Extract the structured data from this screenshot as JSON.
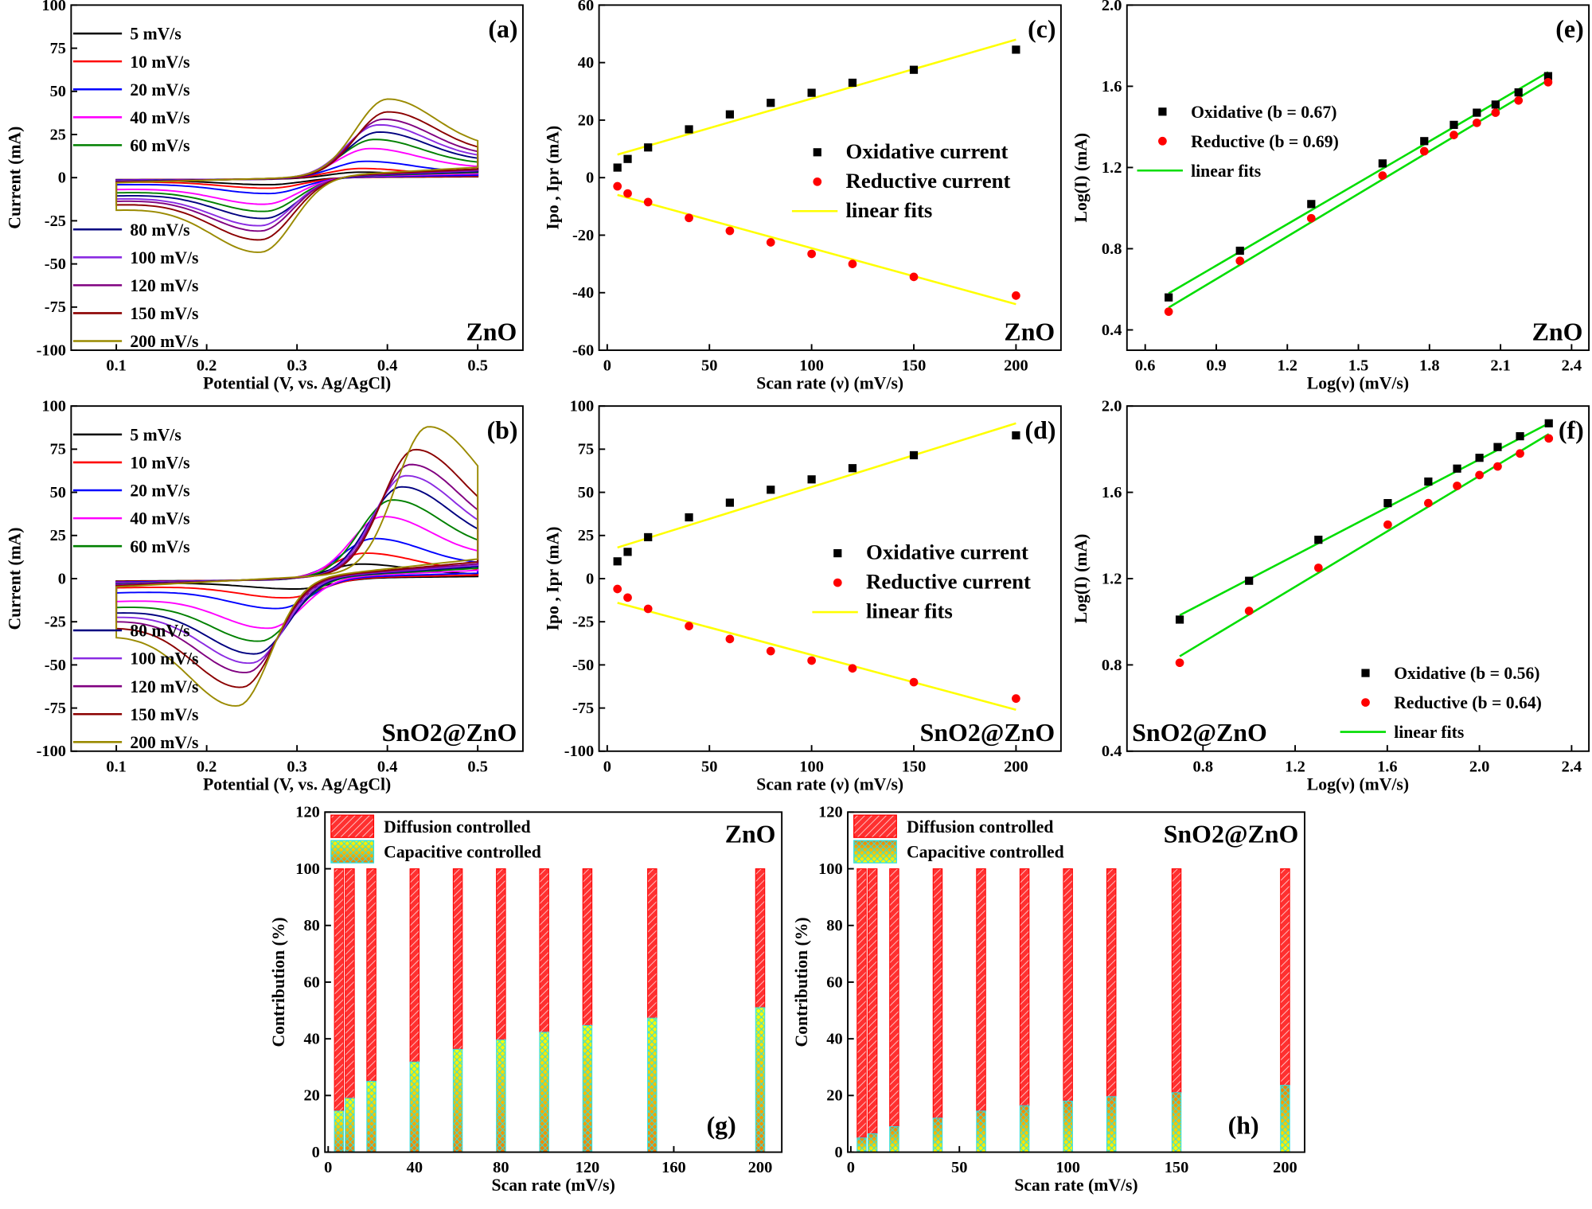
{
  "chart_data": [
    {
      "id": "a",
      "type": "line",
      "panel_label": "(a)",
      "sample": "ZnO",
      "xlabel": "Potential (V, vs. Ag/AgCl)",
      "ylabel": "Current (mA)",
      "xlim": [
        0.05,
        0.55
      ],
      "ylim": [
        -100,
        100
      ],
      "xticks": [
        "0.1",
        "0.2",
        "0.3",
        "0.4",
        "0.5"
      ],
      "xtick_values": [
        0.1,
        0.2,
        0.3,
        0.4,
        0.5
      ],
      "yticks": [
        "-100",
        "-75",
        "-50",
        "-25",
        "0",
        "25",
        "50",
        "75",
        "100"
      ],
      "ytick_values": [
        -100,
        -75,
        -50,
        -25,
        0,
        25,
        50,
        75,
        100
      ],
      "series": [
        {
          "name": "5 mV/s",
          "color": "#000000",
          "anodic_peak": [
            0.37,
            4
          ],
          "cathodic_peak": [
            0.27,
            -4
          ]
        },
        {
          "name": "10 mV/s",
          "color": "#ff0000",
          "anodic_peak": [
            0.37,
            6
          ],
          "cathodic_peak": [
            0.27,
            -6
          ]
        },
        {
          "name": "20 mV/s",
          "color": "#0000ff",
          "anodic_peak": [
            0.375,
            10
          ],
          "cathodic_peak": [
            0.27,
            -9
          ]
        },
        {
          "name": "40 mV/s",
          "color": "#ff00ff",
          "anodic_peak": [
            0.38,
            17
          ],
          "cathodic_peak": [
            0.265,
            -15
          ]
        },
        {
          "name": "60 mV/s",
          "color": "#008000",
          "anodic_peak": [
            0.385,
            22
          ],
          "cathodic_peak": [
            0.265,
            -19
          ]
        },
        {
          "name": "80  mV/s",
          "color": "#000080",
          "anodic_peak": [
            0.39,
            26
          ],
          "cathodic_peak": [
            0.265,
            -23
          ]
        },
        {
          "name": "100 mV/s",
          "color": "#8a2be2",
          "anodic_peak": [
            0.39,
            30
          ],
          "cathodic_peak": [
            0.26,
            -27
          ]
        },
        {
          "name": "120 mV/s",
          "color": "#800080",
          "anodic_peak": [
            0.395,
            33
          ],
          "cathodic_peak": [
            0.26,
            -30
          ]
        },
        {
          "name": "150 mV/s",
          "color": "#8b0000",
          "anodic_peak": [
            0.4,
            37
          ],
          "cathodic_peak": [
            0.26,
            -35
          ]
        },
        {
          "name": "200 mV/s",
          "color": "#9a8a00",
          "anodic_peak": [
            0.4,
            44
          ],
          "cathodic_peak": [
            0.26,
            -42
          ]
        }
      ]
    },
    {
      "id": "b",
      "type": "line",
      "panel_label": "(b)",
      "sample": "SnO2@ZnO",
      "xlabel": "Potential (V, vs. Ag/AgCl)",
      "ylabel": "Current (mA)",
      "xlim": [
        0.05,
        0.55
      ],
      "ylim": [
        -100,
        100
      ],
      "xticks": [
        "0.1",
        "0.2",
        "0.3",
        "0.4",
        "0.5"
      ],
      "xtick_values": [
        0.1,
        0.2,
        0.3,
        0.4,
        0.5
      ],
      "yticks": [
        "-100",
        "-75",
        "-50",
        "-25",
        "0",
        "25",
        "50",
        "75",
        "100"
      ],
      "ytick_values": [
        -100,
        -75,
        -50,
        -25,
        0,
        25,
        50,
        75,
        100
      ],
      "series": [
        {
          "name": "5 mV/s",
          "color": "#000000",
          "anodic_peak": [
            0.37,
            9
          ],
          "cathodic_peak": [
            0.3,
            -6
          ]
        },
        {
          "name": "10 mV/s",
          "color": "#ff0000",
          "anodic_peak": [
            0.375,
            15
          ],
          "cathodic_peak": [
            0.29,
            -11
          ]
        },
        {
          "name": "20 mV/s",
          "color": "#0000ff",
          "anodic_peak": [
            0.385,
            23
          ],
          "cathodic_peak": [
            0.28,
            -17
          ]
        },
        {
          "name": "40 mV/s",
          "color": "#ff00ff",
          "anodic_peak": [
            0.395,
            35
          ],
          "cathodic_peak": [
            0.27,
            -28
          ]
        },
        {
          "name": "60 mV/s",
          "color": "#008000",
          "anodic_peak": [
            0.405,
            44
          ],
          "cathodic_peak": [
            0.26,
            -35
          ]
        },
        {
          "name": "80  mV/s",
          "color": "#000080",
          "anodic_peak": [
            0.415,
            51
          ],
          "cathodic_peak": [
            0.255,
            -42
          ]
        },
        {
          "name": "100 mV/s",
          "color": "#8a2be2",
          "anodic_peak": [
            0.42,
            57
          ],
          "cathodic_peak": [
            0.25,
            -47
          ]
        },
        {
          "name": "120 mV/s",
          "color": "#800080",
          "anodic_peak": [
            0.425,
            63
          ],
          "cathodic_peak": [
            0.245,
            -52
          ]
        },
        {
          "name": "150 mV/s",
          "color": "#8b0000",
          "anodic_peak": [
            0.43,
            71
          ],
          "cathodic_peak": [
            0.24,
            -60
          ]
        },
        {
          "name": "200 mV/s",
          "color": "#9a8a00",
          "anodic_peak": [
            0.445,
            83
          ],
          "cathodic_peak": [
            0.235,
            -70
          ]
        }
      ]
    },
    {
      "id": "c",
      "type": "scatter",
      "panel_label": "(c)",
      "sample": "ZnO",
      "xlabel": "Scan rate (ν) (mV/s)",
      "ylabel": "Ipo , Ipr (mA)",
      "xlim": [
        -4,
        222
      ],
      "ylim": [
        -60,
        60
      ],
      "xticks": [
        "0",
        "50",
        "100",
        "150",
        "200"
      ],
      "xtick_values": [
        0,
        50,
        100,
        150,
        200
      ],
      "yticks": [
        "-60",
        "-40",
        "-20",
        "0",
        "20",
        "40",
        "60"
      ],
      "ytick_values": [
        -60,
        -40,
        -20,
        0,
        20,
        40,
        60
      ],
      "x": [
        5,
        10,
        20,
        40,
        60,
        80,
        100,
        120,
        150,
        200
      ],
      "series": [
        {
          "name": "Oxidative current",
          "color": "#000000",
          "marker": "square",
          "values": [
            3.5,
            6.5,
            10.5,
            16.8,
            22,
            26,
            29.5,
            33,
            37.5,
            44.5
          ]
        },
        {
          "name": "Reductive current",
          "color": "#ff0000",
          "marker": "circle",
          "values": [
            -3,
            -5.5,
            -8.5,
            -14,
            -18.5,
            -22.5,
            -26.5,
            -30,
            -34.5,
            -41
          ]
        }
      ],
      "fits": {
        "name": "linear fits",
        "color": "#ffff00",
        "lines": [
          [
            [
              5,
              8
            ],
            [
              200,
              48
            ]
          ],
          [
            [
              5,
              -6
            ],
            [
              200,
              -44
            ]
          ]
        ]
      }
    },
    {
      "id": "d",
      "type": "scatter",
      "panel_label": "(d)",
      "sample": "SnO2@ZnO",
      "xlabel": "Scan rate (ν) (mV/s)",
      "ylabel": "Ipo , Ipr (mA)",
      "xlim": [
        -4,
        222
      ],
      "ylim": [
        -100,
        100
      ],
      "xticks": [
        "0",
        "50",
        "100",
        "150",
        "200"
      ],
      "xtick_values": [
        0,
        50,
        100,
        150,
        200
      ],
      "yticks": [
        "-100",
        "-75",
        "-50",
        "-25",
        "0",
        "25",
        "50",
        "75",
        "100"
      ],
      "ytick_values": [
        -100,
        -75,
        -50,
        -25,
        0,
        25,
        50,
        75,
        100
      ],
      "x": [
        5,
        10,
        20,
        40,
        60,
        80,
        100,
        120,
        150,
        200
      ],
      "series": [
        {
          "name": "Oxidative current",
          "color": "#000000",
          "marker": "square",
          "values": [
            10,
            15.5,
            24,
            35.5,
            44,
            51.5,
            57.5,
            64,
            71.5,
            83
          ]
        },
        {
          "name": "Reductive current",
          "color": "#ff0000",
          "marker": "circle",
          "values": [
            -6,
            -11,
            -17.5,
            -27.5,
            -35,
            -42,
            -47.5,
            -52,
            -60,
            -69.5
          ]
        }
      ],
      "fits": {
        "name": "linear fits",
        "color": "#ffff00",
        "lines": [
          [
            [
              5,
              18
            ],
            [
              200,
              90
            ]
          ],
          [
            [
              5,
              -14
            ],
            [
              200,
              -76
            ]
          ]
        ]
      }
    },
    {
      "id": "e",
      "type": "scatter",
      "panel_label": "(e)",
      "sample": "ZnO",
      "xlabel": "Log(ν) (mV/s)",
      "ylabel": "Log(I) (mA)",
      "xlim": [
        0.523,
        2.473
      ],
      "ylim": [
        0.3,
        2.0
      ],
      "xticks": [
        "0.6",
        "0.9",
        "1.2",
        "1.5",
        "1.8",
        "2.1",
        "2.4"
      ],
      "xtick_values": [
        0.6,
        0.9,
        1.2,
        1.5,
        1.8,
        2.1,
        2.4
      ],
      "yticks": [
        "0.4",
        "0.8",
        "1.2",
        "1.6",
        "2.0"
      ],
      "ytick_values": [
        0.4,
        0.8,
        1.2,
        1.6,
        2.0
      ],
      "x": [
        0.699,
        1.0,
        1.301,
        1.602,
        1.778,
        1.903,
        2.0,
        2.079,
        2.176,
        2.301
      ],
      "series": [
        {
          "name": "Oxidative (b = 0.67)",
          "color": "#000000",
          "marker": "square",
          "values": [
            0.56,
            0.79,
            1.02,
            1.22,
            1.33,
            1.41,
            1.47,
            1.51,
            1.57,
            1.65
          ]
        },
        {
          "name": "Reductive (b = 0.69)",
          "color": "#ff0000",
          "marker": "circle",
          "values": [
            0.49,
            0.74,
            0.95,
            1.16,
            1.28,
            1.36,
            1.42,
            1.47,
            1.53,
            1.62
          ]
        }
      ],
      "fits": {
        "name": "linear fits",
        "color": "#00dd00",
        "lines": [
          [
            [
              0.699,
              0.58
            ],
            [
              2.301,
              1.67
            ]
          ],
          [
            [
              0.699,
              0.51
            ],
            [
              2.301,
              1.63
            ]
          ]
        ]
      }
    },
    {
      "id": "f",
      "type": "scatter",
      "panel_label": "(f)",
      "sample": "SnO2@ZnO",
      "xlabel": "Log(ν) (mV/s)",
      "ylabel": "Log(I) (mA)",
      "xlim": [
        0.47,
        2.475
      ],
      "ylim": [
        0.4,
        2.0
      ],
      "xticks": [
        "0.8",
        "1.2",
        "1.6",
        "2.0",
        "2.4"
      ],
      "xtick_values": [
        0.8,
        1.2,
        1.6,
        2.0,
        2.4
      ],
      "yticks": [
        "0.4",
        "0.8",
        "1.2",
        "1.6",
        "2.0"
      ],
      "ytick_values": [
        0.4,
        0.8,
        1.2,
        1.6,
        2.0
      ],
      "x": [
        0.699,
        1.0,
        1.301,
        1.602,
        1.778,
        1.903,
        2.0,
        2.079,
        2.176,
        2.301
      ],
      "series": [
        {
          "name": "Oxidative (b = 0.56)",
          "color": "#000000",
          "marker": "square",
          "values": [
            1.01,
            1.19,
            1.38,
            1.55,
            1.65,
            1.71,
            1.76,
            1.81,
            1.86,
            1.92
          ]
        },
        {
          "name": "Reductive (b = 0.64)",
          "color": "#ff0000",
          "marker": "circle",
          "values": [
            0.81,
            1.05,
            1.25,
            1.45,
            1.55,
            1.63,
            1.68,
            1.72,
            1.78,
            1.85
          ]
        }
      ],
      "fits": {
        "name": "linear fits",
        "color": "#00dd00",
        "lines": [
          [
            [
              0.699,
              1.03
            ],
            [
              2.301,
              1.92
            ]
          ],
          [
            [
              0.699,
              0.84
            ],
            [
              2.301,
              1.87
            ]
          ]
        ]
      }
    },
    {
      "id": "g",
      "type": "bar",
      "stacked": true,
      "panel_label": "(g)",
      "sample": "ZnO",
      "xlabel": "Scan rate (mV/s)",
      "ylabel": "Contribution (%)",
      "xlim": [
        -1.5,
        210
      ],
      "ylim": [
        0,
        120
      ],
      "xticks": [
        "0",
        "40",
        "80",
        "120",
        "160",
        "200"
      ],
      "xtick_values": [
        0,
        40,
        80,
        120,
        160,
        200
      ],
      "yticks": [
        "0",
        "20",
        "40",
        "60",
        "80",
        "100",
        "120"
      ],
      "ytick_values": [
        0,
        20,
        40,
        60,
        80,
        100,
        120
      ],
      "categories": [
        5,
        10,
        20,
        40,
        60,
        80,
        100,
        120,
        150,
        200
      ],
      "series": [
        {
          "name": "Capacitive controlled",
          "color": "#ffd000",
          "values": [
            14.5,
            19,
            25,
            31.8,
            36.3,
            39.6,
            42.3,
            44.7,
            47.3,
            51
          ]
        },
        {
          "name": "Diffusion controlled",
          "color": "#ff2020",
          "values": [
            85.5,
            81,
            75,
            68.2,
            63.7,
            60.4,
            57.7,
            55.3,
            52.7,
            49
          ]
        }
      ]
    },
    {
      "id": "h",
      "type": "bar",
      "stacked": true,
      "panel_label": "(h)",
      "sample": "SnO2@ZnO",
      "xlabel": "Scan rate (mV/s)",
      "ylabel": "Contribution (%)",
      "xlim": [
        -1.4,
        209
      ],
      "ylim": [
        0,
        120
      ],
      "xticks": [
        "0",
        "50",
        "100",
        "150",
        "200"
      ],
      "xtick_values": [
        0,
        50,
        100,
        150,
        200
      ],
      "yticks": [
        "0",
        "20",
        "40",
        "60",
        "80",
        "100",
        "120"
      ],
      "ytick_values": [
        0,
        20,
        40,
        60,
        80,
        100,
        120
      ],
      "categories": [
        5,
        10,
        20,
        40,
        60,
        80,
        100,
        120,
        150,
        200
      ],
      "series": [
        {
          "name": "Capacitive controlled",
          "color": "#ffd000",
          "values": [
            5,
            6.5,
            9,
            12,
            14.5,
            16.4,
            18,
            19.6,
            21,
            23.6
          ]
        },
        {
          "name": "Diffusion controlled",
          "color": "#ff2020",
          "values": [
            95,
            93.5,
            91,
            88,
            85.5,
            83.6,
            82,
            80.4,
            79,
            76.4
          ]
        }
      ]
    }
  ]
}
